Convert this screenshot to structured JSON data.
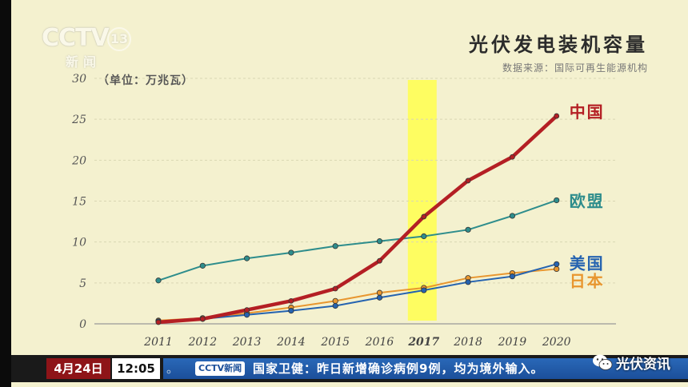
{
  "logo": {
    "brand": "CCTV",
    "channel": "13",
    "sub": "新闻"
  },
  "header": {
    "title": "光伏发电装机容量",
    "source": "数据来源：国际可再生能源机构"
  },
  "ticker": {
    "date": "4月24日",
    "time": "12:05",
    "dots": "。",
    "badge": "CCTV新闻",
    "headline": "国家卫健：昨日新增确诊病例9例，均为境外输入。"
  },
  "watermark": {
    "text": "光伏资讯",
    "icon": "wechat-icon"
  },
  "chart_data": {
    "type": "line",
    "ylabel": "（单位：万兆瓦）",
    "ylim": [
      0,
      30
    ],
    "yticks": [
      "0",
      "5",
      "10",
      "15",
      "20",
      "25",
      "30"
    ],
    "ytick_values": [
      0,
      5,
      10,
      15,
      20,
      25,
      30
    ],
    "x": [
      "2011",
      "2012",
      "2013",
      "2014",
      "2015",
      "2016",
      "2017",
      "2018",
      "2019",
      "2020"
    ],
    "highlight": {
      "category": "2017",
      "color": "#ffff4d"
    },
    "grid": true,
    "legend": "right, labels at line ends",
    "series": [
      {
        "name": "中国",
        "color": "#b41f24",
        "values": [
          0.2,
          0.6,
          1.7,
          2.8,
          4.3,
          7.7,
          13.1,
          17.5,
          20.4,
          25.4
        ]
      },
      {
        "name": "欧盟",
        "color": "#2e8d8c",
        "values": [
          5.3,
          7.1,
          8.0,
          8.7,
          9.5,
          10.1,
          10.7,
          11.5,
          13.2,
          15.1
        ]
      },
      {
        "name": "美国",
        "color": "#2563b0",
        "values": [
          0.3,
          0.6,
          1.1,
          1.6,
          2.2,
          3.2,
          4.1,
          5.1,
          5.8,
          7.3
        ]
      },
      {
        "name": "日本",
        "color": "#e8962f",
        "values": [
          0.4,
          0.7,
          1.3,
          2.0,
          2.8,
          3.8,
          4.4,
          5.6,
          6.2,
          6.7
        ]
      }
    ]
  }
}
